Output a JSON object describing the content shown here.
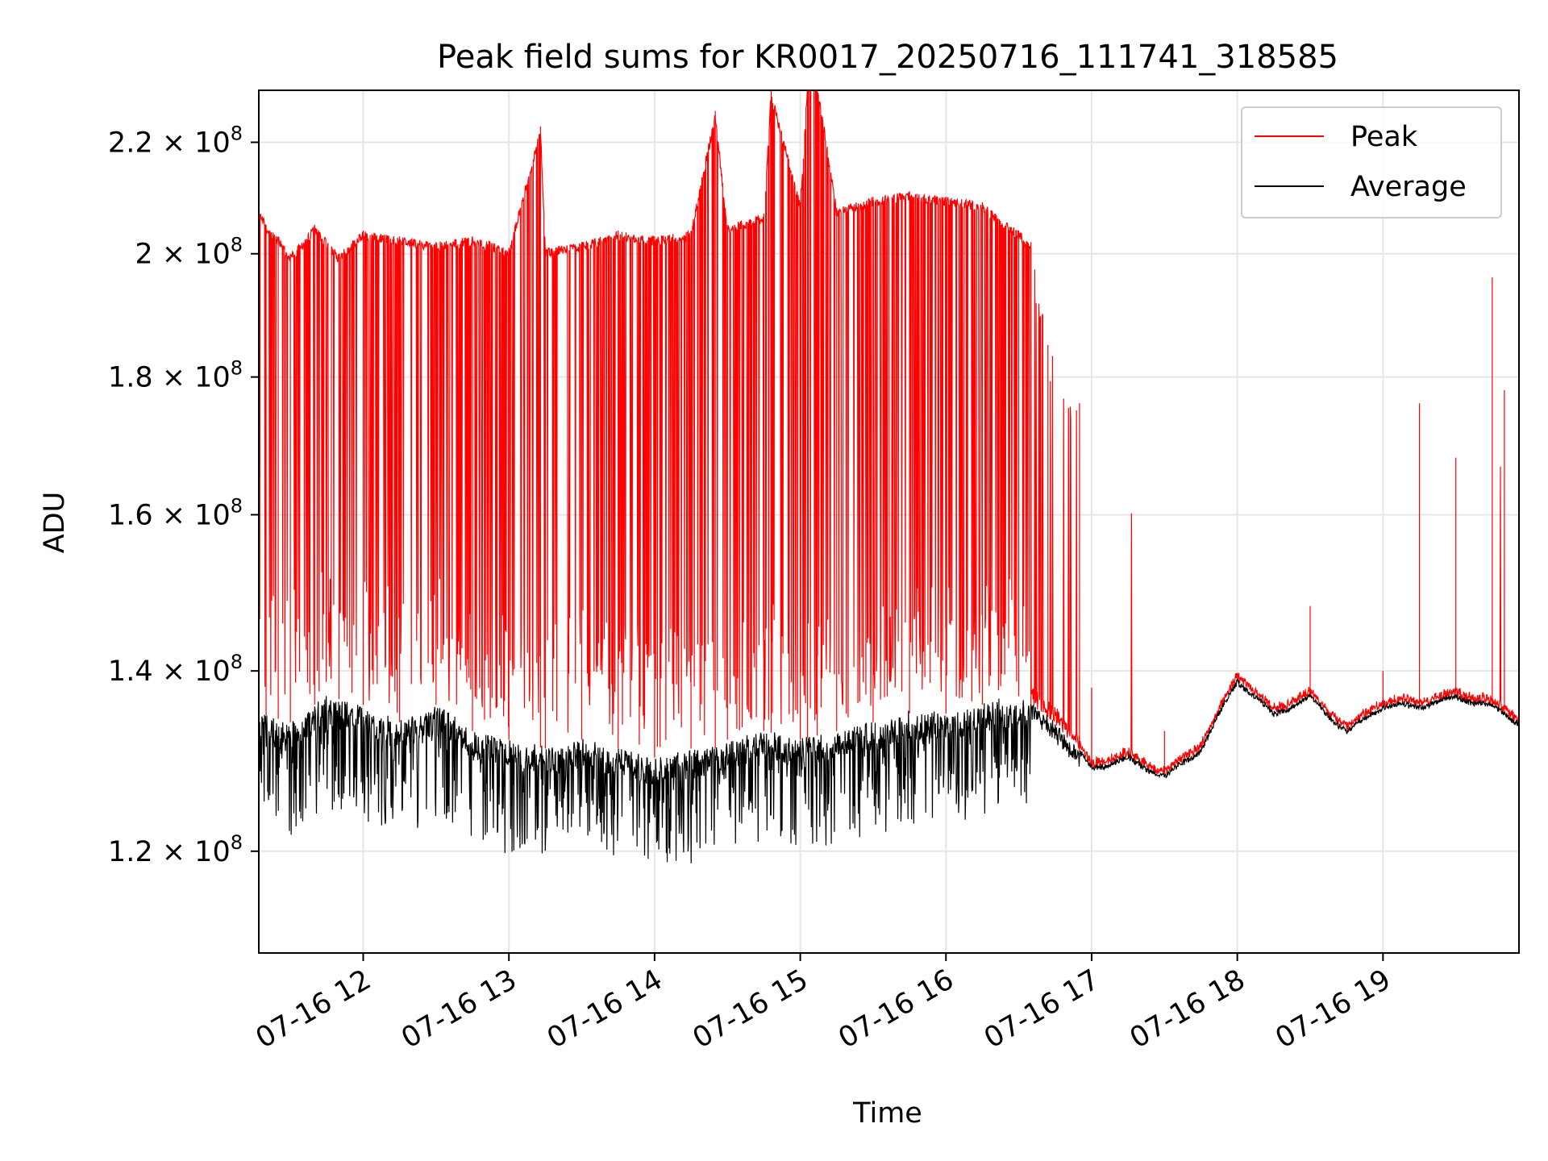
{
  "chart_data": {
    "type": "line",
    "title": "Peak field sums for KR0017_20250716_111741_318585",
    "xlabel": "Time",
    "ylabel": "ADU",
    "x_range": [
      "2025-07-16 11:17",
      "2025-07-16 19:56"
    ],
    "y_scale": "log",
    "ylim": [
      110000000.0,
      230000000.0
    ],
    "grid": true,
    "legend_position": "top-right",
    "x_ticks": [
      {
        "time": "2025-07-16 12:00",
        "label": "07-16 12"
      },
      {
        "time": "2025-07-16 13:00",
        "label": "07-16 13"
      },
      {
        "time": "2025-07-16 14:00",
        "label": "07-16 14"
      },
      {
        "time": "2025-07-16 15:00",
        "label": "07-16 15"
      },
      {
        "time": "2025-07-16 16:00",
        "label": "07-16 16"
      },
      {
        "time": "2025-07-16 17:00",
        "label": "07-16 17"
      },
      {
        "time": "2025-07-16 18:00",
        "label": "07-16 18"
      },
      {
        "time": "2025-07-16 19:00",
        "label": "07-16 19"
      }
    ],
    "y_ticks": [
      {
        "value": 120000000,
        "mantissa": "1.2",
        "base": "10",
        "exp": "8"
      },
      {
        "value": 140000000,
        "mantissa": "1.4",
        "base": "10",
        "exp": "8"
      },
      {
        "value": 160000000,
        "mantissa": "1.6",
        "base": "10",
        "exp": "8"
      },
      {
        "value": 180000000,
        "mantissa": "1.8",
        "base": "10",
        "exp": "8"
      },
      {
        "value": 200000000,
        "mantissa": "2",
        "base": "10",
        "exp": "8"
      },
      {
        "value": 220000000,
        "mantissa": "2.2",
        "base": "10",
        "exp": "8"
      }
    ],
    "series": [
      {
        "name": "Peak",
        "color": "#ff0000",
        "x": [
          "2025-07-16 11:17",
          "2025-07-16 11:20",
          "2025-07-16 11:25",
          "2025-07-16 11:30",
          "2025-07-16 11:40",
          "2025-07-16 11:50",
          "2025-07-16 12:00",
          "2025-07-16 12:15",
          "2025-07-16 12:30",
          "2025-07-16 12:45",
          "2025-07-16 13:00",
          "2025-07-16 13:13",
          "2025-07-16 13:15",
          "2025-07-16 13:30",
          "2025-07-16 13:45",
          "2025-07-16 14:00",
          "2025-07-16 14:15",
          "2025-07-16 14:25",
          "2025-07-16 14:30",
          "2025-07-16 14:45",
          "2025-07-16 14:48",
          "2025-07-16 15:00",
          "2025-07-16 15:03",
          "2025-07-16 15:07",
          "2025-07-16 15:15",
          "2025-07-16 15:30",
          "2025-07-16 15:45",
          "2025-07-16 16:00",
          "2025-07-16 16:15",
          "2025-07-16 16:30",
          "2025-07-16 16:35",
          "2025-07-16 16:42",
          "2025-07-16 16:55",
          "2025-07-16 17:00",
          "2025-07-16 17:30",
          "2025-07-16 18:00",
          "2025-07-16 18:30",
          "2025-07-16 19:00",
          "2025-07-16 19:15",
          "2025-07-16 19:30",
          "2025-07-16 19:45",
          "2025-07-16 19:50",
          "2025-07-16 19:56"
        ],
        "y": [
          209000000,
          205000000,
          203000000,
          200000000,
          205000000,
          200000000,
          204000000,
          203000000,
          202000000,
          203000000,
          201000000,
          223000000,
          201000000,
          202000000,
          204000000,
          203000000,
          204000000,
          226000000,
          205000000,
          207000000,
          230000000,
          209000000,
          232000000,
          232000000,
          208000000,
          210000000,
          211000000,
          210000000,
          209000000,
          204000000,
          202000000,
          185000000,
          176000000,
          138000000,
          133000000,
          139000000,
          148000000,
          140000000,
          176000000,
          168000000,
          196000000,
          178000000,
          134000000
        ]
      },
      {
        "name": "Average",
        "color": "#000000",
        "x": [
          "2025-07-16 11:17",
          "2025-07-16 11:30",
          "2025-07-16 11:45",
          "2025-07-16 12:00",
          "2025-07-16 12:15",
          "2025-07-16 12:30",
          "2025-07-16 12:45",
          "2025-07-16 13:00",
          "2025-07-16 13:15",
          "2025-07-16 13:30",
          "2025-07-16 13:45",
          "2025-07-16 14:00",
          "2025-07-16 14:15",
          "2025-07-16 14:25",
          "2025-07-16 14:30",
          "2025-07-16 14:45",
          "2025-07-16 15:00",
          "2025-07-16 15:15",
          "2025-07-16 15:30",
          "2025-07-16 15:45",
          "2025-07-16 16:00",
          "2025-07-16 16:15",
          "2025-07-16 16:30",
          "2025-07-16 16:45",
          "2025-07-16 17:00",
          "2025-07-16 17:15",
          "2025-07-16 17:30",
          "2025-07-16 17:45",
          "2025-07-16 18:00",
          "2025-07-16 18:15",
          "2025-07-16 18:30",
          "2025-07-16 18:45",
          "2025-07-16 19:00",
          "2025-07-16 19:15",
          "2025-07-16 19:30",
          "2025-07-16 19:45",
          "2025-07-16 19:56"
        ],
        "y": [
          135000000,
          134000000,
          137000000,
          136000000,
          134000000,
          136000000,
          133000000,
          132000000,
          131000000,
          132000000,
          131000000,
          130000000,
          131000000,
          131000000,
          132000000,
          133000000,
          132000000,
          133000000,
          134000000,
          135000000,
          135000000,
          136000000,
          137000000,
          134000000,
          129000000,
          130000000,
          128000000,
          131000000,
          139000000,
          135000000,
          137000000,
          133000000,
          136000000,
          136000000,
          137000000,
          136000000,
          134000000
        ]
      }
    ]
  }
}
